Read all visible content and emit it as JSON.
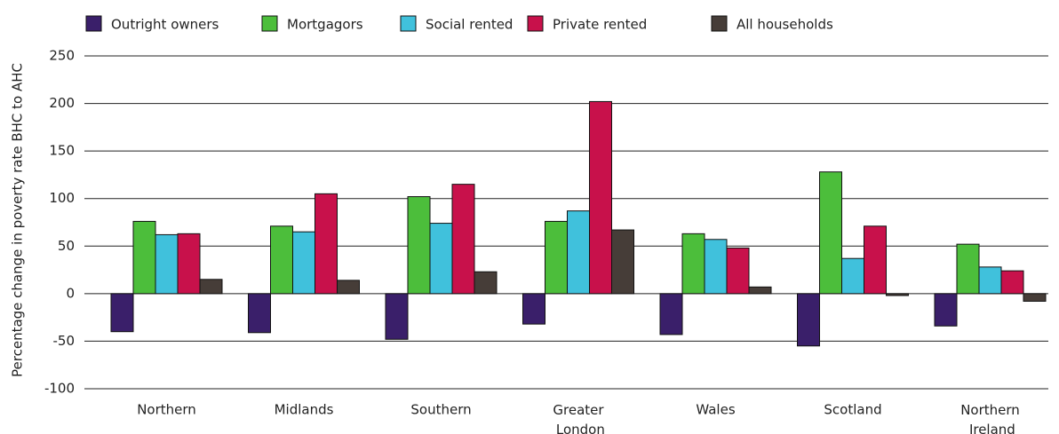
{
  "chart_data": {
    "type": "bar",
    "y_label": "Percentage change in poverty rate BHC to AHC",
    "categories": [
      "Northern",
      "Midlands",
      "Southern",
      "Greater London",
      "Wales",
      "Scotland",
      "Northern Ireland"
    ],
    "series": [
      {
        "name": "Outright owners",
        "color": "#3a1f6a",
        "values": [
          -40,
          -41,
          -48,
          -32,
          -43,
          -55,
          -34
        ]
      },
      {
        "name": "Mortgagors",
        "color": "#4cbe3b",
        "values": [
          76,
          71,
          102,
          76,
          63,
          128,
          52
        ]
      },
      {
        "name": "Social rented",
        "color": "#40c1dc",
        "values": [
          62,
          65,
          74,
          87,
          57,
          37,
          28
        ]
      },
      {
        "name": "Private rented",
        "color": "#c8114b",
        "values": [
          63,
          105,
          115,
          202,
          48,
          71,
          24
        ]
      },
      {
        "name": "All households",
        "color": "#463d38",
        "values": [
          15,
          14,
          23,
          67,
          7,
          -2,
          -8
        ]
      }
    ],
    "ylim": [
      -100,
      250
    ],
    "yticks": [
      -100,
      -50,
      0,
      50,
      100,
      150,
      200,
      250
    ],
    "grid": true,
    "legend": "top"
  }
}
